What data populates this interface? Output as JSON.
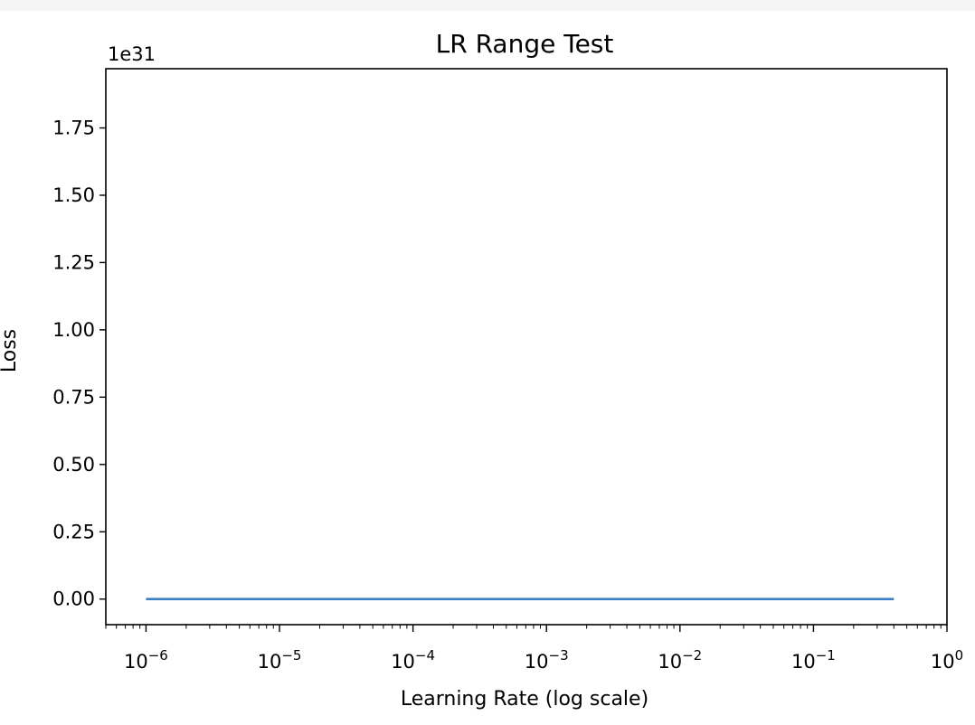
{
  "chart_data": {
    "type": "line",
    "title": "LR Range Test",
    "xlabel": "Learning Rate (log scale)",
    "ylabel": "Loss",
    "x_scale": "log",
    "xlim": [
      5e-07,
      1.0
    ],
    "ylim": [
      -0.095,
      1.97
    ],
    "y_offset_label": "1e31",
    "y_ticks": [
      0,
      0.25,
      0.5,
      0.75,
      1.0,
      1.25,
      1.5,
      1.75
    ],
    "y_tick_labels": [
      "0.00",
      "0.25",
      "0.50",
      "0.75",
      "1.00",
      "1.25",
      "1.50",
      "1.75"
    ],
    "x_ticks": [
      {
        "value": 1e-06,
        "base": "10",
        "exp": "−6"
      },
      {
        "value": 1e-05,
        "base": "10",
        "exp": "−5"
      },
      {
        "value": 0.0001,
        "base": "10",
        "exp": "−4"
      },
      {
        "value": 0.001,
        "base": "10",
        "exp": "−3"
      },
      {
        "value": 0.01,
        "base": "10",
        "exp": "−2"
      },
      {
        "value": 0.1,
        "base": "10",
        "exp": "−1"
      },
      {
        "value": 1,
        "base": "10",
        "exp": "0"
      }
    ],
    "grid": false,
    "series": [
      {
        "color": "#3a7fc1",
        "x": [
          1e-06,
          0.4
        ],
        "y": [
          0.0,
          0.0
        ]
      }
    ]
  }
}
